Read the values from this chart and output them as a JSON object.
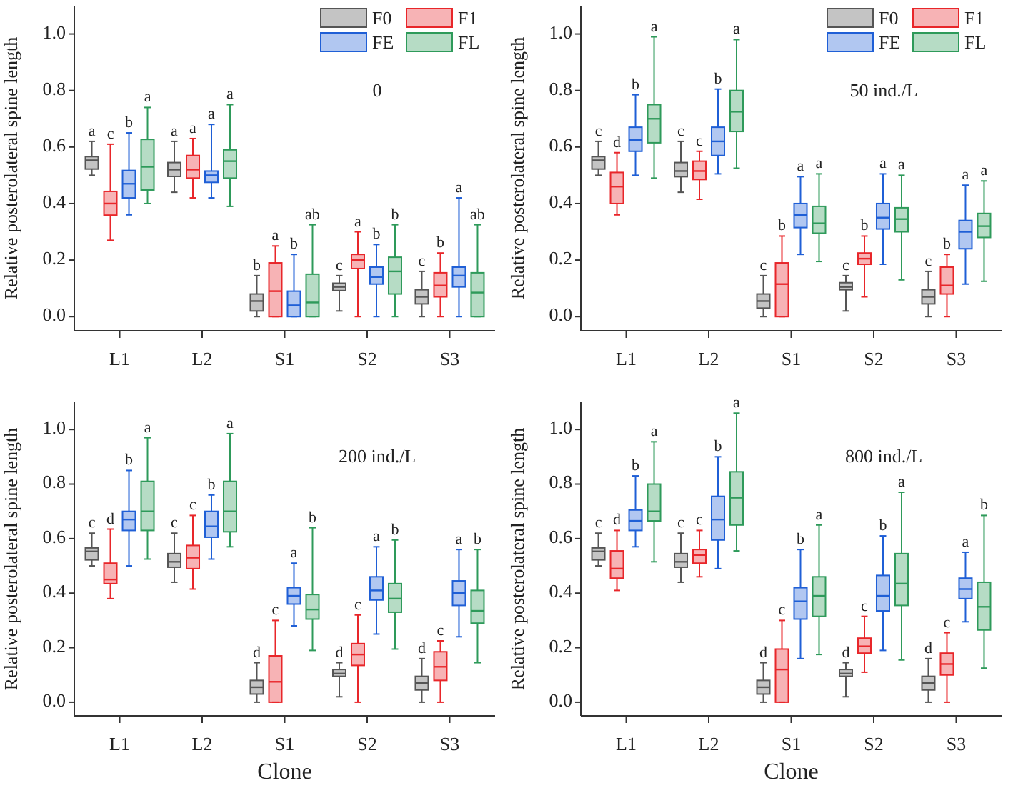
{
  "chart_data": [
    {
      "type": "box",
      "title": "0",
      "ylabel": "Relative posterolateral spine length",
      "categories": [
        "L1",
        "L2",
        "S1",
        "S2",
        "S3"
      ],
      "ylim": [
        -0.05,
        1.1
      ],
      "yticks": [
        {
          "value": 0,
          "label": "0.0"
        },
        {
          "value": 0.2,
          "label": "0.2"
        },
        {
          "value": 0.4,
          "label": "0.4"
        },
        {
          "value": 0.6,
          "label": "0.6"
        },
        {
          "value": 0.8,
          "label": "0.8"
        },
        {
          "value": 1,
          "label": "1.0"
        }
      ],
      "legend": "top right",
      "grid": false,
      "series": [
        {
          "name": "F0",
          "color": "#555555",
          "value_labels": [
            "a",
            "a",
            "b",
            "c",
            "c"
          ],
          "boxes": [
            {
              "low": 0.5,
              "q1": 0.522,
              "median": 0.553,
              "q3": 0.566,
              "high": 0.62
            },
            {
              "low": 0.44,
              "q1": 0.496,
              "median": 0.52,
              "q3": 0.545,
              "high": 0.62
            },
            {
              "low": 0,
              "q1": 0.02,
              "median": 0.055,
              "q3": 0.08,
              "high": 0.145
            },
            {
              "low": 0.02,
              "q1": 0.092,
              "median": 0.105,
              "q3": 0.118,
              "high": 0.145
            },
            {
              "low": 0,
              "q1": 0.045,
              "median": 0.07,
              "q3": 0.095,
              "high": 0.16
            }
          ]
        },
        {
          "name": "F1",
          "color": "#e8262a",
          "value_labels": [
            "c",
            "a",
            "a",
            "a",
            "b"
          ],
          "boxes": [
            {
              "low": 0.27,
              "q1": 0.359,
              "median": 0.4,
              "q3": 0.443,
              "high": 0.61
            },
            {
              "low": 0.42,
              "q1": 0.49,
              "median": 0.52,
              "q3": 0.57,
              "high": 0.63
            },
            {
              "low": 0,
              "q1": 0,
              "median": 0.09,
              "q3": 0.19,
              "high": 0.25
            },
            {
              "low": 0,
              "q1": 0.17,
              "median": 0.2,
              "q3": 0.22,
              "high": 0.3
            },
            {
              "low": 0,
              "q1": 0.07,
              "median": 0.11,
              "q3": 0.155,
              "high": 0.225
            }
          ]
        },
        {
          "name": "FE",
          "color": "#1f5fd6",
          "value_labels": [
            "b",
            "a",
            "b",
            "b",
            "a"
          ],
          "boxes": [
            {
              "low": 0.36,
              "q1": 0.42,
              "median": 0.47,
              "q3": 0.517,
              "high": 0.65
            },
            {
              "low": 0.42,
              "q1": 0.475,
              "median": 0.5,
              "q3": 0.515,
              "high": 0.68
            },
            {
              "low": 0,
              "q1": 0,
              "median": 0.04,
              "q3": 0.09,
              "high": 0.22
            },
            {
              "low": 0,
              "q1": 0.115,
              "median": 0.14,
              "q3": 0.175,
              "high": 0.255
            },
            {
              "low": 0,
              "q1": 0.105,
              "median": 0.145,
              "q3": 0.175,
              "high": 0.42
            }
          ]
        },
        {
          "name": "FL",
          "color": "#2e9a5a",
          "value_labels": [
            "a",
            "a",
            "ab",
            "b",
            "ab"
          ],
          "boxes": [
            {
              "low": 0.4,
              "q1": 0.448,
              "median": 0.53,
              "q3": 0.627,
              "high": 0.74
            },
            {
              "low": 0.39,
              "q1": 0.49,
              "median": 0.55,
              "q3": 0.59,
              "high": 0.75
            },
            {
              "low": 0,
              "q1": 0,
              "median": 0.05,
              "q3": 0.15,
              "high": 0.325
            },
            {
              "low": 0,
              "q1": 0.08,
              "median": 0.16,
              "q3": 0.21,
              "high": 0.325
            },
            {
              "low": 0,
              "q1": 0,
              "median": 0.085,
              "q3": 0.155,
              "high": 0.325
            }
          ]
        }
      ]
    },
    {
      "type": "box",
      "title": "50 ind./L",
      "ylabel": "Relative posterolateral spine length",
      "categories": [
        "L1",
        "L2",
        "S1",
        "S2",
        "S3"
      ],
      "ylim": [
        -0.05,
        1.1
      ],
      "yticks": [
        {
          "value": 0,
          "label": "0.0"
        },
        {
          "value": 0.2,
          "label": "0.2"
        },
        {
          "value": 0.4,
          "label": "0.4"
        },
        {
          "value": 0.6,
          "label": "0.6"
        },
        {
          "value": 0.8,
          "label": "0.8"
        },
        {
          "value": 1,
          "label": "1.0"
        }
      ],
      "legend": "top right",
      "grid": false,
      "series": [
        {
          "name": "F0",
          "color": "#555555",
          "value_labels": [
            "c",
            "c",
            "c",
            "c",
            "c"
          ],
          "boxes": [
            {
              "low": 0.5,
              "q1": 0.522,
              "median": 0.553,
              "q3": 0.566,
              "high": 0.62
            },
            {
              "low": 0.44,
              "q1": 0.495,
              "median": 0.515,
              "q3": 0.545,
              "high": 0.62
            },
            {
              "low": 0,
              "q1": 0.03,
              "median": 0.055,
              "q3": 0.08,
              "high": 0.145
            },
            {
              "low": 0.02,
              "q1": 0.095,
              "median": 0.105,
              "q3": 0.12,
              "high": 0.145
            },
            {
              "low": 0,
              "q1": 0.045,
              "median": 0.07,
              "q3": 0.095,
              "high": 0.16
            }
          ]
        },
        {
          "name": "F1",
          "color": "#e8262a",
          "value_labels": [
            "d",
            "c",
            "b",
            "b",
            "b"
          ],
          "boxes": [
            {
              "low": 0.36,
              "q1": 0.4,
              "median": 0.46,
              "q3": 0.51,
              "high": 0.58
            },
            {
              "low": 0.415,
              "q1": 0.485,
              "median": 0.515,
              "q3": 0.55,
              "high": 0.585
            },
            {
              "low": 0,
              "q1": 0,
              "median": 0.115,
              "q3": 0.19,
              "high": 0.285
            },
            {
              "low": 0.07,
              "q1": 0.185,
              "median": 0.205,
              "q3": 0.225,
              "high": 0.285
            },
            {
              "low": 0,
              "q1": 0.08,
              "median": 0.11,
              "q3": 0.175,
              "high": 0.22
            }
          ]
        },
        {
          "name": "FE",
          "color": "#1f5fd6",
          "value_labels": [
            "b",
            "b",
            "a",
            "a",
            "a"
          ],
          "boxes": [
            {
              "low": 0.5,
              "q1": 0.585,
              "median": 0.625,
              "q3": 0.67,
              "high": 0.785
            },
            {
              "low": 0.505,
              "q1": 0.57,
              "median": 0.62,
              "q3": 0.67,
              "high": 0.805
            },
            {
              "low": 0.22,
              "q1": 0.315,
              "median": 0.36,
              "q3": 0.4,
              "high": 0.495
            },
            {
              "low": 0.185,
              "q1": 0.31,
              "median": 0.35,
              "q3": 0.4,
              "high": 0.505
            },
            {
              "low": 0.115,
              "q1": 0.24,
              "median": 0.3,
              "q3": 0.34,
              "high": 0.465
            }
          ]
        },
        {
          "name": "FL",
          "color": "#2e9a5a",
          "value_labels": [
            "a",
            "a",
            "a",
            "a",
            "a"
          ],
          "boxes": [
            {
              "low": 0.49,
              "q1": 0.615,
              "median": 0.7,
              "q3": 0.75,
              "high": 0.99
            },
            {
              "low": 0.525,
              "q1": 0.655,
              "median": 0.725,
              "q3": 0.8,
              "high": 0.98
            },
            {
              "low": 0.195,
              "q1": 0.295,
              "median": 0.33,
              "q3": 0.39,
              "high": 0.505
            },
            {
              "low": 0.13,
              "q1": 0.3,
              "median": 0.345,
              "q3": 0.385,
              "high": 0.5
            },
            {
              "low": 0.125,
              "q1": 0.28,
              "median": 0.32,
              "q3": 0.365,
              "high": 0.48
            }
          ]
        }
      ]
    },
    {
      "type": "box",
      "title": "200 ind./L",
      "xlabel": "Clone",
      "ylabel": "Relative posterolateral spine length",
      "categories": [
        "L1",
        "L2",
        "S1",
        "S2",
        "S3"
      ],
      "ylim": [
        -0.05,
        1.1
      ],
      "yticks": [
        {
          "value": 0,
          "label": "0.0"
        },
        {
          "value": 0.2,
          "label": "0.2"
        },
        {
          "value": 0.4,
          "label": "0.4"
        },
        {
          "value": 0.6,
          "label": "0.6"
        },
        {
          "value": 0.8,
          "label": "0.8"
        },
        {
          "value": 1,
          "label": "1.0"
        }
      ],
      "legend": false,
      "grid": false,
      "series": [
        {
          "color": "#555555",
          "value_labels": [
            "c",
            "c",
            "d",
            "d",
            "d"
          ],
          "boxes": [
            {
              "low": 0.5,
              "q1": 0.522,
              "median": 0.553,
              "q3": 0.566,
              "high": 0.62
            },
            {
              "low": 0.44,
              "q1": 0.495,
              "median": 0.515,
              "q3": 0.545,
              "high": 0.62
            },
            {
              "low": 0,
              "q1": 0.03,
              "median": 0.055,
              "q3": 0.08,
              "high": 0.145
            },
            {
              "low": 0.02,
              "q1": 0.095,
              "median": 0.105,
              "q3": 0.12,
              "high": 0.145
            },
            {
              "low": 0,
              "q1": 0.045,
              "median": 0.07,
              "q3": 0.095,
              "high": 0.16
            }
          ]
        },
        {
          "color": "#e8262a",
          "value_labels": [
            "d",
            "c",
            "c",
            "c",
            "c"
          ],
          "boxes": [
            {
              "low": 0.38,
              "q1": 0.435,
              "median": 0.45,
              "q3": 0.51,
              "high": 0.635
            },
            {
              "low": 0.415,
              "q1": 0.49,
              "median": 0.53,
              "q3": 0.575,
              "high": 0.685
            },
            {
              "low": 0,
              "q1": 0,
              "median": 0.075,
              "q3": 0.17,
              "high": 0.3
            },
            {
              "low": 0,
              "q1": 0.135,
              "median": 0.175,
              "q3": 0.215,
              "high": 0.32
            },
            {
              "low": 0,
              "q1": 0.08,
              "median": 0.13,
              "q3": 0.185,
              "high": 0.225
            }
          ]
        },
        {
          "color": "#1f5fd6",
          "value_labels": [
            "b",
            "b",
            "a",
            "a",
            "a"
          ],
          "boxes": [
            {
              "low": 0.5,
              "q1": 0.63,
              "median": 0.67,
              "q3": 0.7,
              "high": 0.85
            },
            {
              "low": 0.525,
              "q1": 0.605,
              "median": 0.645,
              "q3": 0.7,
              "high": 0.76
            },
            {
              "low": 0.28,
              "q1": 0.36,
              "median": 0.39,
              "q3": 0.42,
              "high": 0.51
            },
            {
              "low": 0.25,
              "q1": 0.375,
              "median": 0.41,
              "q3": 0.46,
              "high": 0.57
            },
            {
              "low": 0.24,
              "q1": 0.355,
              "median": 0.4,
              "q3": 0.445,
              "high": 0.56
            }
          ]
        },
        {
          "color": "#2e9a5a",
          "value_labels": [
            "a",
            "a",
            "b",
            "b",
            "b"
          ],
          "boxes": [
            {
              "low": 0.525,
              "q1": 0.63,
              "median": 0.7,
              "q3": 0.81,
              "high": 0.97
            },
            {
              "low": 0.57,
              "q1": 0.625,
              "median": 0.7,
              "q3": 0.81,
              "high": 0.985
            },
            {
              "low": 0.19,
              "q1": 0.305,
              "median": 0.34,
              "q3": 0.395,
              "high": 0.64
            },
            {
              "low": 0.195,
              "q1": 0.33,
              "median": 0.38,
              "q3": 0.435,
              "high": 0.595
            },
            {
              "low": 0.145,
              "q1": 0.29,
              "median": 0.335,
              "q3": 0.41,
              "high": 0.56
            }
          ]
        }
      ]
    },
    {
      "type": "box",
      "title": "800 ind./L",
      "xlabel": "Clone",
      "ylabel": "Relative posterolateral spine length",
      "categories": [
        "L1",
        "L2",
        "S1",
        "S2",
        "S3"
      ],
      "ylim": [
        -0.05,
        1.1
      ],
      "yticks": [
        {
          "value": 0,
          "label": "0.0"
        },
        {
          "value": 0.2,
          "label": "0.2"
        },
        {
          "value": 0.4,
          "label": "0.4"
        },
        {
          "value": 0.6,
          "label": "0.6"
        },
        {
          "value": 0.8,
          "label": "0.8"
        },
        {
          "value": 1,
          "label": "1.0"
        }
      ],
      "legend": false,
      "grid": false,
      "series": [
        {
          "color": "#555555",
          "value_labels": [
            "c",
            "c",
            "d",
            "d",
            "d"
          ],
          "boxes": [
            {
              "low": 0.5,
              "q1": 0.522,
              "median": 0.553,
              "q3": 0.566,
              "high": 0.62
            },
            {
              "low": 0.44,
              "q1": 0.495,
              "median": 0.515,
              "q3": 0.545,
              "high": 0.62
            },
            {
              "low": 0,
              "q1": 0.03,
              "median": 0.055,
              "q3": 0.08,
              "high": 0.145
            },
            {
              "low": 0.02,
              "q1": 0.095,
              "median": 0.105,
              "q3": 0.12,
              "high": 0.145
            },
            {
              "low": 0,
              "q1": 0.045,
              "median": 0.07,
              "q3": 0.095,
              "high": 0.16
            }
          ]
        },
        {
          "color": "#e8262a",
          "value_labels": [
            "d",
            "c",
            "c",
            "c",
            "c"
          ],
          "boxes": [
            {
              "low": 0.41,
              "q1": 0.455,
              "median": 0.49,
              "q3": 0.555,
              "high": 0.63
            },
            {
              "low": 0.46,
              "q1": 0.51,
              "median": 0.54,
              "q3": 0.56,
              "high": 0.63
            },
            {
              "low": 0,
              "q1": 0,
              "median": 0.12,
              "q3": 0.195,
              "high": 0.3
            },
            {
              "low": 0.11,
              "q1": 0.18,
              "median": 0.205,
              "q3": 0.235,
              "high": 0.315
            },
            {
              "low": 0,
              "q1": 0.1,
              "median": 0.14,
              "q3": 0.18,
              "high": 0.255
            }
          ]
        },
        {
          "color": "#1f5fd6",
          "value_labels": [
            "b",
            "b",
            "b",
            "b",
            "a"
          ],
          "boxes": [
            {
              "low": 0.57,
              "q1": 0.63,
              "median": 0.665,
              "q3": 0.705,
              "high": 0.83
            },
            {
              "low": 0.49,
              "q1": 0.595,
              "median": 0.67,
              "q3": 0.755,
              "high": 0.9
            },
            {
              "low": 0.16,
              "q1": 0.305,
              "median": 0.37,
              "q3": 0.42,
              "high": 0.56
            },
            {
              "low": 0.19,
              "q1": 0.335,
              "median": 0.39,
              "q3": 0.465,
              "high": 0.61
            },
            {
              "low": 0.295,
              "q1": 0.38,
              "median": 0.415,
              "q3": 0.455,
              "high": 0.55
            }
          ]
        },
        {
          "color": "#2e9a5a",
          "value_labels": [
            "a",
            "a",
            "a",
            "a",
            "b"
          ],
          "boxes": [
            {
              "low": 0.515,
              "q1": 0.665,
              "median": 0.7,
              "q3": 0.8,
              "high": 0.955
            },
            {
              "low": 0.555,
              "q1": 0.65,
              "median": 0.75,
              "q3": 0.845,
              "high": 1.06
            },
            {
              "low": 0.175,
              "q1": 0.315,
              "median": 0.39,
              "q3": 0.46,
              "high": 0.65
            },
            {
              "low": 0.155,
              "q1": 0.355,
              "median": 0.435,
              "q3": 0.545,
              "high": 0.77
            },
            {
              "low": 0.125,
              "q1": 0.265,
              "median": 0.35,
              "q3": 0.44,
              "high": 0.685
            }
          ]
        }
      ]
    }
  ]
}
